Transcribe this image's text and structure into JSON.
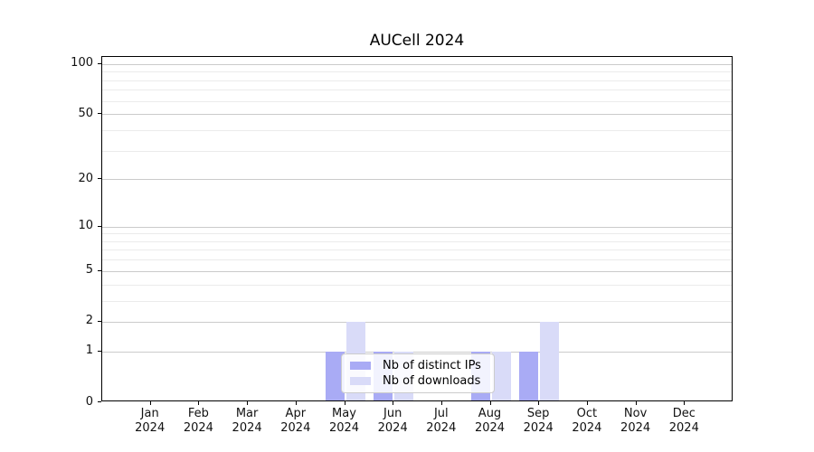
{
  "chart_data": {
    "type": "bar",
    "title": "AUCell 2024",
    "categories": [
      "Jan",
      "Feb",
      "Mar",
      "Apr",
      "May",
      "Jun",
      "Jul",
      "Aug",
      "Sep",
      "Oct",
      "Nov",
      "Dec"
    ],
    "xtick_year": "2024",
    "series": [
      {
        "name": "Nb of distinct IPs",
        "color": "#a9abf5",
        "values": [
          0,
          0,
          0,
          0,
          1,
          1,
          0,
          1,
          1,
          0,
          0,
          0
        ]
      },
      {
        "name": "Nb of downloads",
        "color": "#d9dbf8",
        "values": [
          0,
          0,
          0,
          0,
          2,
          1,
          0,
          1,
          2,
          0,
          0,
          0
        ]
      }
    ],
    "xlabel": "",
    "ylabel": "",
    "yscale": "log1p",
    "ylim": [
      0,
      110
    ],
    "y_major_ticks": [
      0,
      1,
      2,
      5,
      10,
      20,
      50,
      100
    ],
    "y_minor_gridlines": [
      3,
      4,
      6,
      7,
      8,
      9,
      30,
      40,
      60,
      70,
      80,
      90
    ],
    "grid": true,
    "legend_position": "inside-bottom-center",
    "colors": {
      "major_grid": "#cbcbcb",
      "minor_grid": "#ebebeb",
      "axis": "#000000",
      "text": "#111111",
      "background": "#ffffff"
    }
  }
}
